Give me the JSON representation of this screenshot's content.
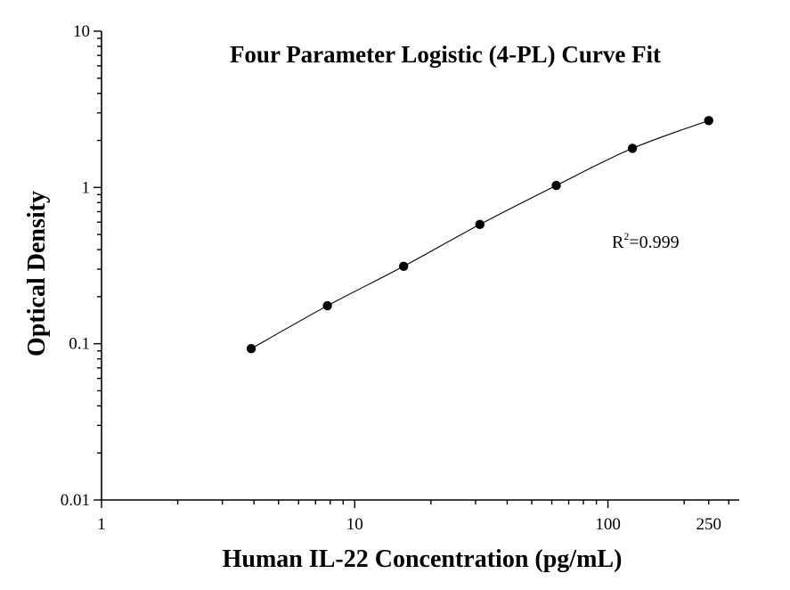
{
  "chart_data": {
    "type": "scatter",
    "title": "Four Parameter Logistic (4-PL) Curve Fit",
    "xlabel": "Human IL-22 Concentration (pg/mL)",
    "ylabel": "Optical Density",
    "xscale": "log",
    "yscale": "log",
    "xlim": [
      1,
      330
    ],
    "ylim": [
      0.01,
      10
    ],
    "xticks": [
      {
        "value": 1,
        "label": "1"
      },
      {
        "value": 10,
        "label": "10"
      },
      {
        "value": 100,
        "label": "100"
      },
      {
        "value": 250,
        "label": "250"
      }
    ],
    "yticks": [
      {
        "value": 0.01,
        "label": "0.01"
      },
      {
        "value": 0.1,
        "label": "0.1"
      },
      {
        "value": 1,
        "label": "1"
      },
      {
        "value": 10,
        "label": "10"
      }
    ],
    "grid": false,
    "legend": "none",
    "series": [
      {
        "points": [
          {
            "x": 3.9,
            "y": 0.093
          },
          {
            "x": 7.8,
            "y": 0.175
          },
          {
            "x": 15.6,
            "y": 0.313
          },
          {
            "x": 31.2,
            "y": 0.58
          },
          {
            "x": 62.5,
            "y": 1.03
          },
          {
            "x": 125,
            "y": 1.78
          },
          {
            "x": 250,
            "y": 2.68
          }
        ]
      }
    ],
    "annotation": {
      "text_base": "R",
      "text_sup": "2",
      "text_rest": "=0.999"
    },
    "colors": {
      "points": "#000000",
      "curve": "#000000",
      "axes": "#000000"
    }
  }
}
